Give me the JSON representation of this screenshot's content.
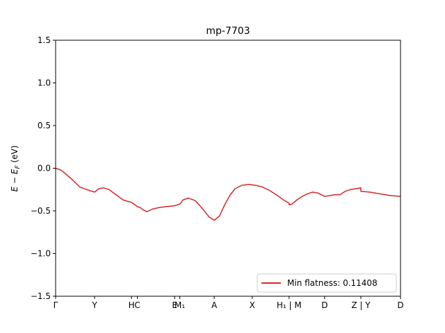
{
  "chart_data": {
    "type": "line",
    "title": "mp-7703",
    "xlabel": "",
    "ylabel": "E − E_F (eV)",
    "ylim": [
      -1.5,
      1.5
    ],
    "xlim": [
      0,
      10
    ],
    "grid": false,
    "legend_position": "lower-right",
    "y_ticks": [
      -1.5,
      -1.0,
      -0.5,
      0.0,
      0.5,
      1.0,
      1.5
    ],
    "y_tick_labels": [
      "−1.5",
      "−1.0",
      "−0.5",
      "0.0",
      "0.5",
      "1.0",
      "1.5"
    ],
    "x_ticks": [
      {
        "x": 0.0,
        "label": "Γ"
      },
      {
        "x": 1.13,
        "label": "Y"
      },
      {
        "x": 2.2,
        "label": "H"
      },
      {
        "x": 2.37,
        "label": "C"
      },
      {
        "x": 3.45,
        "label": "E"
      },
      {
        "x": 3.6,
        "label": "M₁"
      },
      {
        "x": 4.6,
        "label": "A"
      },
      {
        "x": 5.7,
        "label": "X"
      },
      {
        "x": 6.77,
        "label": "H₁ | M"
      },
      {
        "x": 7.8,
        "label": "D"
      },
      {
        "x": 8.85,
        "label": "Z | Y"
      },
      {
        "x": 10.0,
        "label": "D"
      }
    ],
    "series": [
      {
        "name": "Min flatness: 0.11408",
        "color": "#d62728",
        "x": [
          0,
          0.15,
          0.3,
          0.5,
          0.7,
          0.9,
          1.13,
          1.25,
          1.4,
          1.55,
          1.75,
          1.95,
          2.1,
          2.2,
          2.3,
          2.37,
          2.45,
          2.55,
          2.65,
          2.8,
          3.0,
          3.2,
          3.45,
          3.6,
          3.7,
          3.85,
          4.05,
          4.25,
          4.45,
          4.6,
          4.75,
          4.9,
          5.05,
          5.2,
          5.4,
          5.6,
          5.8,
          6.0,
          6.2,
          6.4,
          6.6,
          6.77,
          6.77,
          6.85,
          7.0,
          7.15,
          7.3,
          7.45,
          7.6,
          7.7,
          7.8,
          7.95,
          8.1,
          8.25,
          8.4,
          8.55,
          8.7,
          8.85,
          8.85,
          9.1,
          9.4,
          9.7,
          10.0
        ],
        "y": [
          0.0,
          -0.02,
          -0.07,
          -0.14,
          -0.22,
          -0.25,
          -0.28,
          -0.24,
          -0.23,
          -0.25,
          -0.31,
          -0.37,
          -0.39,
          -0.4,
          -0.43,
          -0.45,
          -0.46,
          -0.49,
          -0.51,
          -0.48,
          -0.46,
          -0.45,
          -0.44,
          -0.42,
          -0.37,
          -0.35,
          -0.38,
          -0.47,
          -0.57,
          -0.61,
          -0.56,
          -0.43,
          -0.32,
          -0.24,
          -0.2,
          -0.19,
          -0.2,
          -0.22,
          -0.26,
          -0.31,
          -0.37,
          -0.41,
          -0.43,
          -0.42,
          -0.37,
          -0.33,
          -0.3,
          -0.28,
          -0.29,
          -0.31,
          -0.33,
          -0.32,
          -0.31,
          -0.31,
          -0.27,
          -0.25,
          -0.24,
          -0.23,
          -0.27,
          -0.28,
          -0.3,
          -0.32,
          -0.33
        ]
      }
    ]
  }
}
